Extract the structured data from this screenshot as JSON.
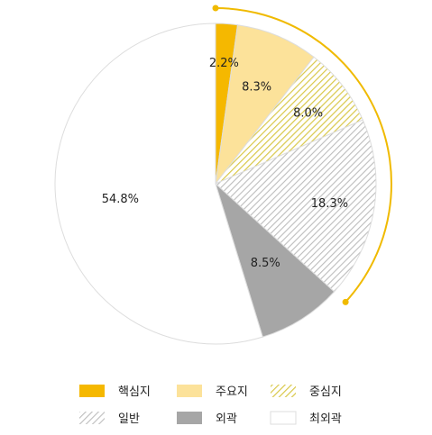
{
  "chart_data": {
    "type": "pie",
    "categories": [
      "핵심지",
      "주요지",
      "중심지",
      "일반",
      "외곽",
      "최외곽"
    ],
    "values": [
      2.2,
      8.3,
      8.0,
      18.3,
      8.5,
      54.8
    ],
    "value_labels": [
      "2.2%",
      "8.3%",
      "8.0%",
      "18.3%",
      "8.5%",
      "54.8%"
    ],
    "unit": "%",
    "start": "12 o'clock, clockwise",
    "legend_position": "bottom",
    "highlight_arc_span": "핵심지 through 일반",
    "colors": {
      "핵심지": "#F5B800",
      "주요지": "#FCE29A",
      "중심지": "#E5D55A",
      "일반": "#BDBDBD",
      "외곽": "#A6A6A6",
      "최외곽": "#FFFFFF",
      "highlight_arc": "#F0BA00",
      "slice_border": "#DDDDDD"
    },
    "patterns": {
      "중심지": "diagonal-hatch",
      "일반": "diagonal-hatch"
    }
  }
}
